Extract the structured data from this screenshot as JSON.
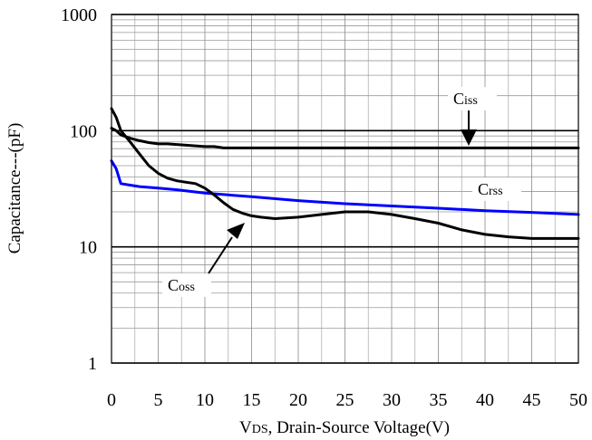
{
  "chart_data": {
    "type": "line",
    "xlabel": {
      "main": "V",
      "sub": "DS",
      "rest": ", Drain-Source Voltage(V)"
    },
    "ylabel": "Capacitance---(pF)",
    "xlim": [
      0,
      50
    ],
    "ylim": [
      1,
      1000
    ],
    "yscale": "log",
    "grid": true,
    "x_ticks": [
      "0",
      "5",
      "10",
      "15",
      "20",
      "25",
      "30",
      "35",
      "40",
      "45",
      "50"
    ],
    "y_ticks": [
      "1",
      "10",
      "100",
      "1000"
    ],
    "series": [
      {
        "name": "Ciss",
        "color": "#000000",
        "points": [
          [
            0,
            105
          ],
          [
            0.5,
            100
          ],
          [
            1,
            92
          ],
          [
            2,
            86
          ],
          [
            3,
            82
          ],
          [
            4,
            79
          ],
          [
            5,
            77
          ],
          [
            6,
            77
          ],
          [
            7,
            76
          ],
          [
            8,
            75
          ],
          [
            10,
            73
          ],
          [
            11,
            73
          ],
          [
            12,
            71
          ],
          [
            15,
            71
          ],
          [
            20,
            71
          ],
          [
            30,
            71
          ],
          [
            40,
            71
          ],
          [
            50,
            71
          ]
        ]
      },
      {
        "name": "Crss",
        "color": "#0000ff",
        "points": [
          [
            0,
            55
          ],
          [
            0.5,
            47
          ],
          [
            1,
            35
          ],
          [
            2,
            34
          ],
          [
            3,
            33
          ],
          [
            5,
            32
          ],
          [
            7,
            31
          ],
          [
            10,
            29
          ],
          [
            15,
            27
          ],
          [
            20,
            25
          ],
          [
            25,
            23.5
          ],
          [
            30,
            22.5
          ],
          [
            35,
            21.5
          ],
          [
            40,
            20.5
          ],
          [
            45,
            19.8
          ],
          [
            50,
            19
          ]
        ]
      },
      {
        "name": "Coss",
        "color": "#000000",
        "points": [
          [
            0,
            155
          ],
          [
            0.5,
            130
          ],
          [
            1,
            100
          ],
          [
            2,
            80
          ],
          [
            3,
            63
          ],
          [
            4,
            50
          ],
          [
            5,
            43
          ],
          [
            6,
            39
          ],
          [
            7,
            37
          ],
          [
            8,
            36
          ],
          [
            9,
            35
          ],
          [
            10,
            32
          ],
          [
            11,
            28
          ],
          [
            12,
            24
          ],
          [
            13,
            21
          ],
          [
            14,
            19.5
          ],
          [
            15,
            18.5
          ],
          [
            16,
            18
          ],
          [
            17.5,
            17.5
          ],
          [
            20,
            18
          ],
          [
            22.5,
            19
          ],
          [
            25,
            20
          ],
          [
            27.5,
            20
          ],
          [
            30,
            19
          ],
          [
            32.5,
            17.5
          ],
          [
            35,
            16
          ],
          [
            37.5,
            14
          ],
          [
            40,
            12.8
          ],
          [
            42.5,
            12.2
          ],
          [
            45,
            11.8
          ],
          [
            47.5,
            11.8
          ],
          [
            50,
            11.8
          ]
        ]
      }
    ],
    "annotations": [
      {
        "label": "Ciss",
        "main": "C",
        "sub": "iss",
        "arrow": "down"
      },
      {
        "label": "Crss",
        "main": "C",
        "sub": "rss"
      },
      {
        "label": "Coss",
        "main": "C",
        "sub": "oss",
        "arrow": "up-right"
      }
    ]
  }
}
